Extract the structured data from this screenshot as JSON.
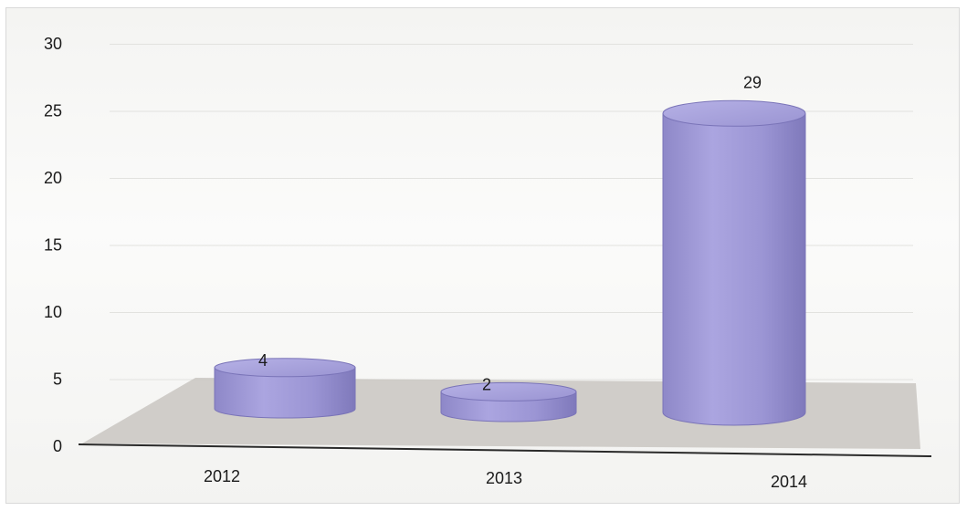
{
  "chart_data": {
    "type": "bar",
    "style": "3d-cylinder",
    "categories": [
      "2012",
      "2013",
      "2014"
    ],
    "values": [
      4,
      2,
      29
    ],
    "data_labels": [
      "4",
      "2",
      "29"
    ],
    "title": "",
    "xlabel": "",
    "ylabel": "",
    "ylim": [
      0,
      30
    ],
    "yticks": [
      0,
      5,
      10,
      15,
      20,
      25,
      30
    ],
    "ytick_labels": [
      "0",
      "5",
      "10",
      "15",
      "20",
      "25",
      "30"
    ],
    "grid": true,
    "legend": "none",
    "colors": {
      "bar_fill": "#9b95d4",
      "bar_top": "#aaa4de",
      "bar_edge": "#7a74b8",
      "floor": "#c9c6c1",
      "axis": "#2a2a2a",
      "gridline": "#e2e2df"
    }
  }
}
